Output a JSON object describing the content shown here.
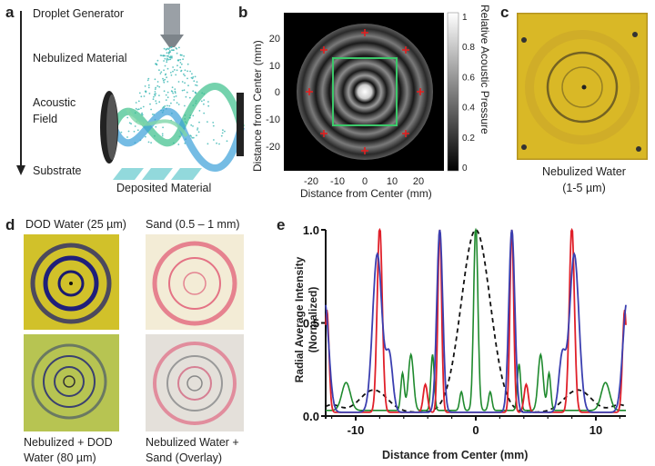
{
  "panel_a": {
    "letter": "a",
    "labels": [
      "Droplet Generator",
      "Nebulized Material",
      "Acoustic",
      "Field",
      "Substrate",
      "Deposited Material"
    ]
  },
  "panel_b": {
    "letter": "b",
    "ylabel": "Distance from Center (mm)",
    "xlabel": "Distance from Center (mm)",
    "xticks": [
      "-20",
      "-10",
      "0",
      "10",
      "20"
    ],
    "yticks": [
      "20",
      "10",
      "0",
      "-10",
      "-20"
    ],
    "colorbar_label": "Relative Acoustic Pressure",
    "colorbar_ticks": [
      "1",
      "0.8",
      "0.6",
      "0.4",
      "0.2",
      "0"
    ]
  },
  "panel_c": {
    "letter": "c",
    "caption_line1": "Nebulized Water",
    "caption_line2": "(1-5 µm)"
  },
  "panel_d": {
    "letter": "d",
    "top_left": "DOD Water (25 µm)",
    "top_right": "Sand (0.5 – 1 mm)",
    "bottom_left_1": "Nebulized + DOD",
    "bottom_left_2": "Water (80 µm)",
    "bottom_right_1": "Nebulized Water +",
    "bottom_right_2": "Sand (Overlay)"
  },
  "panel_e": {
    "letter": "e"
  },
  "chart_data": {
    "type": "line",
    "xlabel": "Distance from Center (mm)",
    "ylabel": "Radial Average Intensity (Normalized)",
    "xlim": [
      -12.5,
      12.5
    ],
    "ylim": [
      0,
      1.0
    ],
    "xticks": [
      "-10",
      "0",
      "10"
    ],
    "yticks": [
      "0.0",
      "0.5",
      "1.0"
    ],
    "colors": {
      "red": "#e0202a",
      "blue": "#3b3fb0",
      "green": "#1f8a2e",
      "dashed": "#111111"
    }
  }
}
